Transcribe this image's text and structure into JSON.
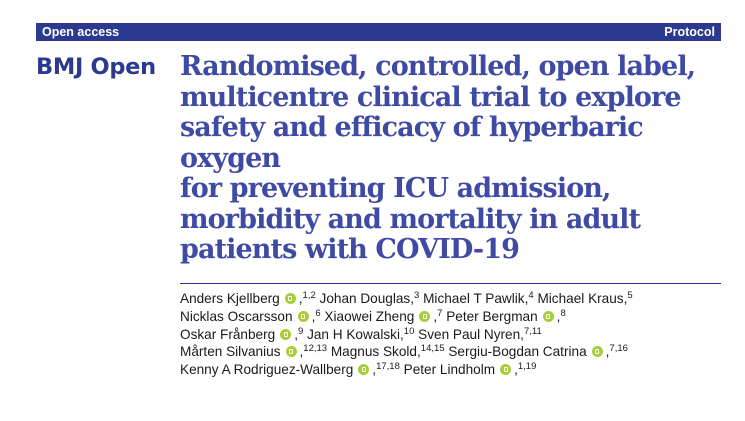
{
  "header": {
    "left_label": "Open access",
    "right_label": "Protocol",
    "bar_color": "#2b3a8f"
  },
  "journal": {
    "name": "BMJ Open",
    "color": "#2b3a8f"
  },
  "article": {
    "title_lines": [
      "Randomised, controlled, open label,",
      "multicentre clinical trial to explore",
      "safety and efficacy of hyperbaric oxygen",
      "for preventing ICU admission,",
      "morbidity and mortality in adult",
      "patients with COVID-19"
    ],
    "title_color": "#3e4aa3"
  },
  "orcid_icon": {
    "name": "orcid-icon",
    "color": "#a6ce39"
  },
  "authors": [
    {
      "name": "Anders Kjellberg",
      "orcid": true,
      "aff": "1,2",
      "sep": "",
      "line_end": false
    },
    {
      "name": "Johan Douglas",
      "orcid": false,
      "aff": "3",
      "sep": "",
      "line_end": false
    },
    {
      "name": "Michael T Pawlik",
      "orcid": false,
      "aff": "4",
      "sep": "",
      "line_end": false
    },
    {
      "name": "Michael Kraus",
      "orcid": false,
      "aff": "5",
      "sep": "",
      "line_end": true
    },
    {
      "name": "Nicklas Oscarsson",
      "orcid": true,
      "aff": "6",
      "sep": "",
      "line_end": false
    },
    {
      "name": "Xiaowei Zheng",
      "orcid": true,
      "aff": "7",
      "sep": "",
      "line_end": false
    },
    {
      "name": "Peter Bergman",
      "orcid": true,
      "aff": "8",
      "sep": "",
      "line_end": true
    },
    {
      "name": "Oskar Frånberg",
      "orcid": true,
      "aff": "9",
      "sep": "",
      "line_end": false
    },
    {
      "name": "Jan H Kowalski",
      "orcid": false,
      "aff": "10",
      "sep": "",
      "line_end": false
    },
    {
      "name": "Sven Paul Nyren",
      "orcid": false,
      "aff": "7,11",
      "sep": "",
      "line_end": true
    },
    {
      "name": "Mårten Silvanius",
      "orcid": true,
      "aff": "12,13",
      "sep": "",
      "line_end": false
    },
    {
      "name": "Magnus Skold",
      "orcid": false,
      "aff": "14,15",
      "sep": "",
      "line_end": false
    },
    {
      "name": "Sergiu-Bogdan Catrina",
      "orcid": true,
      "aff": "7,16",
      "sep": "",
      "line_end": true
    },
    {
      "name": "Kenny A Rodriguez-Wallberg",
      "orcid": true,
      "aff": "17,18",
      "sep": "",
      "line_end": false
    },
    {
      "name": "Peter Lindholm",
      "orcid": true,
      "aff": "1,19",
      "sep": "",
      "line_end": false
    }
  ]
}
